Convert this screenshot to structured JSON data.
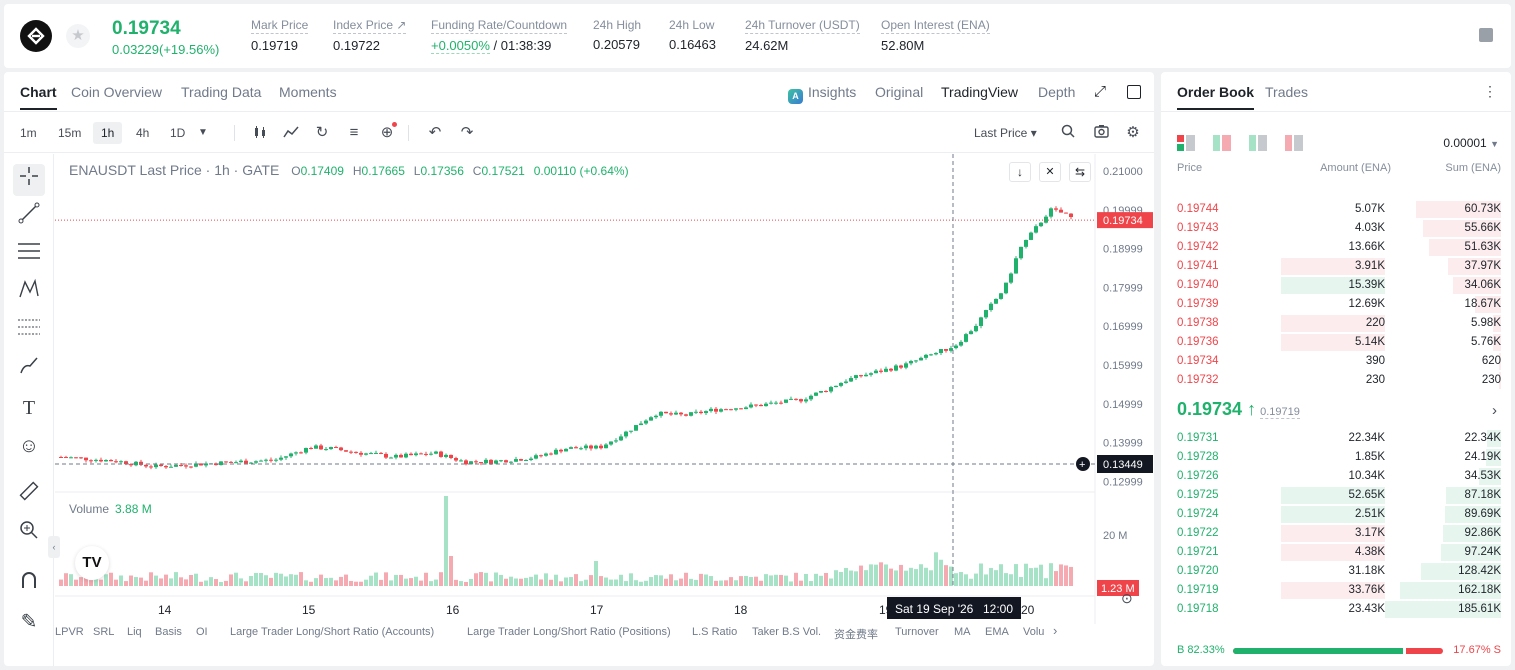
{
  "header": {
    "last_price": "0.19734",
    "change": "0.03229(+19.56%)",
    "stats": [
      {
        "label": "Mark Price",
        "value": "0.19719"
      },
      {
        "label": "Index Price ↗",
        "value": "0.19722"
      },
      {
        "label": "Funding Rate/Countdown",
        "value_green": "+0.0050%",
        "value": " / 01:38:39"
      },
      {
        "label": "24h High",
        "value": "0.20579"
      },
      {
        "label": "24h Low",
        "value": "0.16463"
      },
      {
        "label": "24h Turnover (USDT)",
        "value": "24.62M"
      },
      {
        "label": "Open Interest (ENA)",
        "value": "52.80M"
      }
    ]
  },
  "chart_tabs": [
    "Chart",
    "Coin Overview",
    "Trading Data",
    "Moments"
  ],
  "view_tabs": {
    "insights": "Insights",
    "original": "Original",
    "tradingview": "TradingView",
    "depth": "Depth"
  },
  "timeframes": [
    "1m",
    "15m",
    "1h",
    "4h",
    "1D"
  ],
  "price_source": "Last Price ▾",
  "legend": {
    "symbol": "ENAUSDT Last Price · 1h · GATE",
    "o": "0.17409",
    "h": "0.17665",
    "l": "0.17356",
    "c": "0.17521",
    "chg": "0.00110 (+0.64%)"
  },
  "volume_legend": {
    "label": "Volume",
    "value": "3.88 M"
  },
  "crosshair": {
    "price": "0.13449",
    "time": "Sat 19 Sep '26",
    "clock": "12:00"
  },
  "chart_data": {
    "type": "candlestick",
    "y_ticks": [
      "0.21000",
      "0.19999",
      "0.18999",
      "0.17999",
      "0.16999",
      "0.15999",
      "0.14999",
      "0.13999",
      "0.12999"
    ],
    "x_ticks": [
      "14",
      "15",
      "16",
      "17",
      "18",
      "19",
      "20"
    ],
    "last_price_label": "0.19734",
    "volume_ticks": [
      "20 M"
    ],
    "last_volume_label": "1.23 M"
  },
  "bottom_indicators": [
    "LPVR",
    "SRL",
    "Liq",
    "Basis",
    "OI",
    "Large Trader Long/Short Ratio (Accounts)",
    "Large Trader Long/Short Ratio (Positions)",
    "L.S Ratio",
    "Taker B.S Vol.",
    "资金费率",
    "Turnover",
    "MA",
    "EMA",
    "Volu"
  ],
  "orderbook": {
    "tabs": [
      "Order Book",
      "Trades"
    ],
    "precision": "0.00001",
    "headers": {
      "price": "Price",
      "amount": "Amount (ENA)",
      "sum": "Sum (ENA)"
    },
    "asks": [
      {
        "price": "0.19744",
        "amount": "5.07K",
        "sum": "60.73K",
        "depth": 0.73,
        "amt": 0
      },
      {
        "price": "0.19743",
        "amount": "4.03K",
        "sum": "55.66K",
        "depth": 0.67,
        "amt": 0
      },
      {
        "price": "0.19742",
        "amount": "13.66K",
        "sum": "51.63K",
        "depth": 0.62,
        "amt": 0
      },
      {
        "price": "0.19741",
        "amount": "3.91K",
        "sum": "37.97K",
        "depth": 0.46,
        "amt": 0.55
      },
      {
        "price": "0.19740",
        "amount": "15.39K",
        "sum": "34.06K",
        "depth": 0.41,
        "amt": 0.55,
        "green": true
      },
      {
        "price": "0.19739",
        "amount": "12.69K",
        "sum": "18.67K",
        "depth": 0.22,
        "amt": 0
      },
      {
        "price": "0.19738",
        "amount": "220",
        "sum": "5.98K",
        "depth": 0.07,
        "amt": 0.55
      },
      {
        "price": "0.19736",
        "amount": "5.14K",
        "sum": "5.76K",
        "depth": 0.07,
        "amt": 0.55
      },
      {
        "price": "0.19734",
        "amount": "390",
        "sum": "620",
        "depth": 0.01,
        "amt": 0
      },
      {
        "price": "0.19732",
        "amount": "230",
        "sum": "230",
        "depth": 0.005,
        "amt": 0
      }
    ],
    "mid": {
      "price": "0.19734 ↑",
      "mark": "0.19719"
    },
    "bids": [
      {
        "price": "0.19731",
        "amount": "22.34K",
        "sum": "22.34K",
        "depth": 0.12,
        "amt": 0
      },
      {
        "price": "0.19728",
        "amount": "1.85K",
        "sum": "24.19K",
        "depth": 0.13,
        "amt": 0
      },
      {
        "price": "0.19726",
        "amount": "10.34K",
        "sum": "34.53K",
        "depth": 0.19,
        "amt": 0
      },
      {
        "price": "0.19725",
        "amount": "52.65K",
        "sum": "87.18K",
        "depth": 0.47,
        "amt": 0.55
      },
      {
        "price": "0.19724",
        "amount": "2.51K",
        "sum": "89.69K",
        "depth": 0.48,
        "amt": 0.55
      },
      {
        "price": "0.19722",
        "amount": "3.17K",
        "sum": "92.86K",
        "depth": 0.5,
        "amt": 0.55,
        "red": true
      },
      {
        "price": "0.19721",
        "amount": "4.38K",
        "sum": "97.24K",
        "depth": 0.52,
        "amt": 0.55,
        "red": true
      },
      {
        "price": "0.19720",
        "amount": "31.18K",
        "sum": "128.42K",
        "depth": 0.69,
        "amt": 0
      },
      {
        "price": "0.19719",
        "amount": "33.76K",
        "sum": "162.18K",
        "depth": 0.87,
        "amt": 0.55,
        "red": true
      },
      {
        "price": "0.19718",
        "amount": "23.43K",
        "sum": "185.61K",
        "depth": 1.0,
        "amt": 0
      }
    ],
    "ratio": {
      "buy": "B 82.33%",
      "sell": "17.67% S",
      "buy_frac": 0.8233
    }
  },
  "colors": {
    "up": "#20b26c",
    "down": "#ef454a",
    "up_vol": "#a6e3c6",
    "down_vol": "#f5a9b0"
  }
}
